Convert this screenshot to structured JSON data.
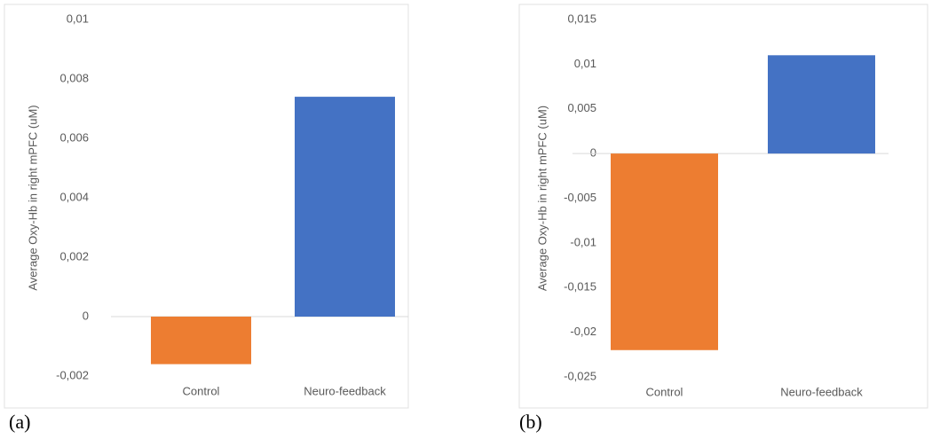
{
  "chart_data": [
    {
      "type": "bar",
      "label": "(a)",
      "y_label": "Average Oxy-Hb in right mPFC (uM)",
      "categories": [
        "Control",
        "Neuro-feedback"
      ],
      "values": [
        -0.0016,
        0.0074
      ],
      "colors": [
        "#ed7d31",
        "#4472c4"
      ],
      "ylim": [
        -0.002,
        0.01
      ],
      "yticks": [
        {
          "value": -0.002,
          "label": "-0,002"
        },
        0,
        {
          "value": 0.002,
          "label": "0,002"
        },
        {
          "value": 0.004,
          "label": "0,004"
        },
        {
          "value": 0.006,
          "label": "0,006"
        },
        {
          "value": 0.008,
          "label": "0,008"
        },
        {
          "value": 0.01,
          "label": "0,01"
        }
      ]
    },
    {
      "type": "bar",
      "label": "(b)",
      "y_label": "Average Oxy-Hb in right mPFC (uM)",
      "categories": [
        "Control",
        "Neuro-feedback"
      ],
      "values": [
        -0.022,
        0.011
      ],
      "colors": [
        "#ed7d31",
        "#4472c4"
      ],
      "ylim": [
        -0.025,
        0.015
      ],
      "yticks": [
        {
          "value": -0.025,
          "label": "-0,025"
        },
        {
          "value": -0.02,
          "label": "-0,02"
        },
        {
          "value": -0.015,
          "label": "-0,015"
        },
        {
          "value": -0.01,
          "label": "-0,01"
        },
        {
          "value": -0.005,
          "label": "-0,005"
        },
        0,
        {
          "value": 0.005,
          "label": "0,005"
        },
        {
          "value": 0.01,
          "label": "0,01"
        },
        {
          "value": 0.015,
          "label": "0,015"
        }
      ]
    }
  ]
}
